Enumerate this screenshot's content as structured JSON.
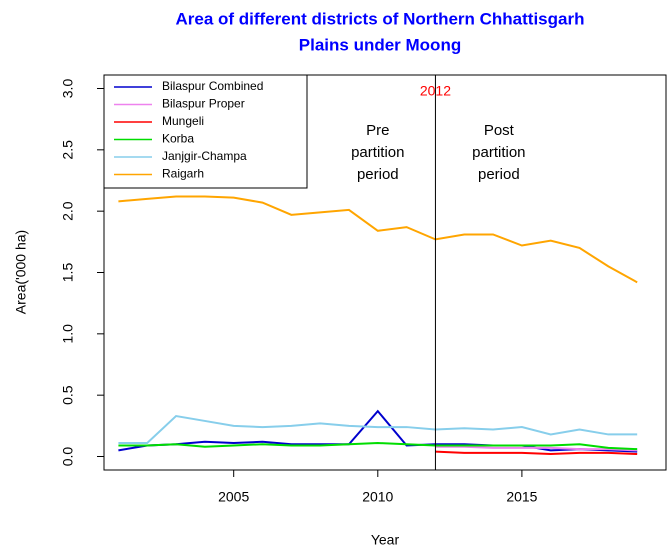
{
  "chart_data": {
    "type": "line",
    "title": "Area of different districts of Northern Chhattisgarh",
    "subtitle": "Plains under Moong",
    "x_label": "Year",
    "y_label": "Area('000 ha)",
    "x": [
      2001,
      2002,
      2003,
      2004,
      2005,
      2006,
      2007,
      2008,
      2009,
      2010,
      2011,
      2012,
      2013,
      2014,
      2015,
      2016,
      2017,
      2018,
      2019
    ],
    "series": [
      {
        "name": "Bilaspur Combined",
        "color": "#0000cd",
        "values": [
          0.05,
          0.09,
          0.1,
          0.12,
          0.11,
          0.12,
          0.1,
          0.1,
          0.1,
          0.37,
          0.09,
          0.1,
          0.1,
          0.09,
          0.09,
          0.05,
          0.06,
          0.05,
          0.04
        ]
      },
      {
        "name": "Bilaspur Proper",
        "color": "#ee82ee",
        "values": [
          null,
          null,
          null,
          null,
          null,
          null,
          null,
          null,
          null,
          null,
          null,
          0.08,
          0.08,
          0.07,
          0.07,
          0.07,
          0.06,
          0.06,
          0.05
        ]
      },
      {
        "name": "Mungeli",
        "color": "#ff0000",
        "values": [
          null,
          null,
          null,
          null,
          null,
          null,
          null,
          null,
          null,
          null,
          null,
          0.04,
          0.03,
          0.03,
          0.03,
          0.02,
          0.03,
          0.03,
          0.02
        ]
      },
      {
        "name": "Korba",
        "color": "#00dd00",
        "values": [
          0.09,
          0.09,
          0.1,
          0.08,
          0.09,
          0.1,
          0.09,
          0.09,
          0.1,
          0.11,
          0.1,
          0.09,
          0.09,
          0.09,
          0.09,
          0.09,
          0.1,
          0.07,
          0.06
        ]
      },
      {
        "name": "Janjgir-Champa",
        "color": "#87ceeb",
        "values": [
          0.11,
          0.11,
          0.33,
          0.29,
          0.25,
          0.24,
          0.25,
          0.27,
          0.25,
          0.24,
          0.24,
          0.22,
          0.23,
          0.22,
          0.24,
          0.18,
          0.22,
          0.18,
          0.18
        ]
      },
      {
        "name": "Raigarh",
        "color": "#ffa500",
        "values": [
          2.08,
          2.1,
          2.12,
          2.12,
          2.11,
          2.07,
          1.97,
          1.99,
          2.01,
          1.84,
          1.87,
          1.77,
          1.81,
          1.81,
          1.72,
          1.76,
          1.7,
          1.55,
          1.42
        ]
      }
    ],
    "xlim": [
      2000.5,
      2020
    ],
    "xticks": [
      2005,
      2010,
      2015
    ],
    "ylim": [
      -0.11,
      3.11
    ],
    "yticks": [
      {
        "value": 0,
        "label": "0.0"
      },
      {
        "value": 0.5,
        "label": "0.5"
      },
      {
        "value": 1,
        "label": "1.0"
      },
      {
        "value": 1.5,
        "label": "1.5"
      },
      {
        "value": 2,
        "label": "2.0"
      },
      {
        "value": 2.5,
        "label": "2.5"
      },
      {
        "value": 3,
        "label": "3.0"
      }
    ],
    "vline": {
      "value": 2012,
      "label": "2012",
      "label_color": "#ff0000"
    },
    "annotations": [
      {
        "x": 2010,
        "lines": [
          "Pre",
          "partition",
          "period"
        ]
      },
      {
        "x": 2014.2,
        "lines": [
          "Post",
          "partition",
          "period"
        ]
      }
    ],
    "legend": "top-left"
  }
}
